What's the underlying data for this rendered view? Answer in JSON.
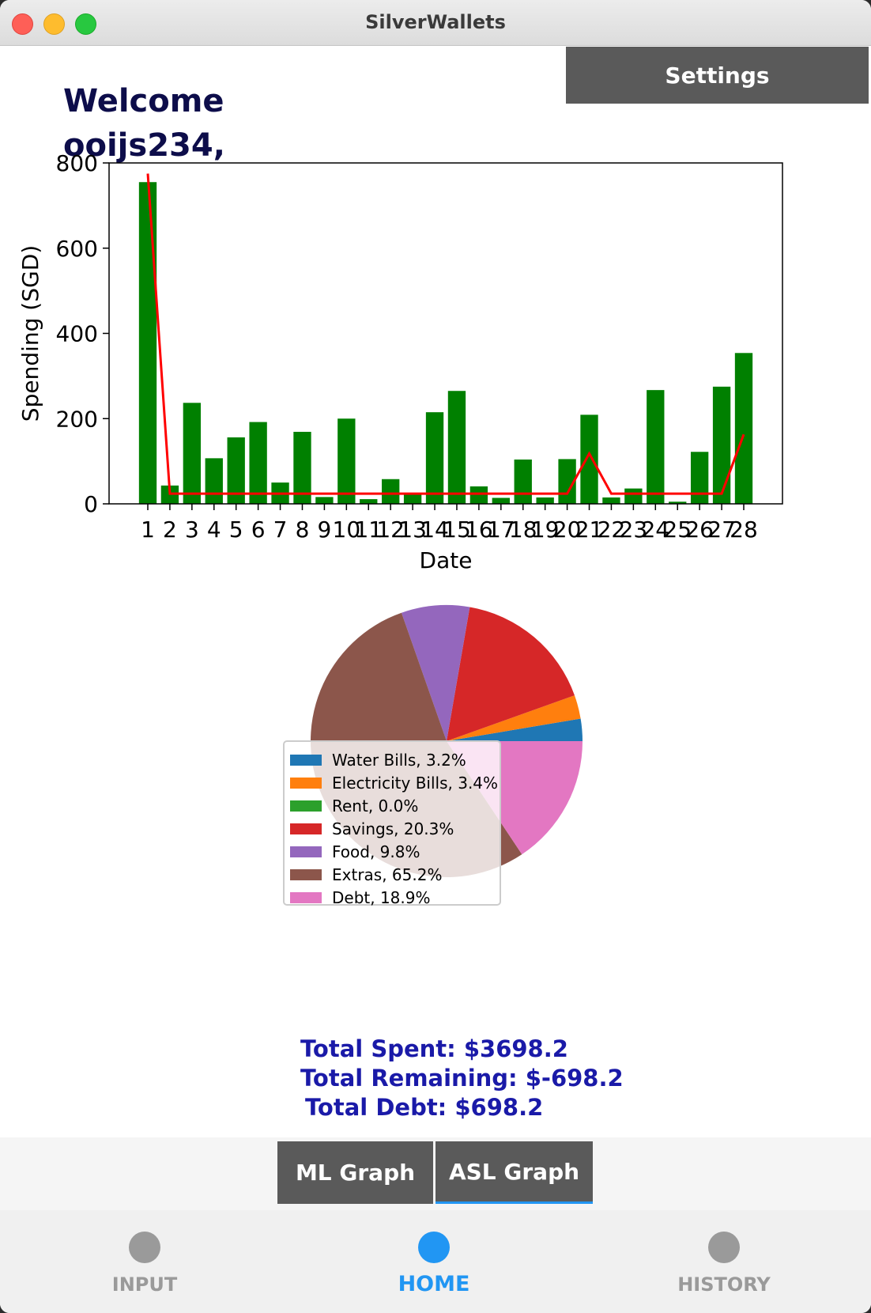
{
  "window": {
    "title": "SilverWallets"
  },
  "header": {
    "settings_label": "Settings",
    "welcome_line1": "Welcome",
    "welcome_line2": "ooijs234,"
  },
  "chart_data": [
    {
      "type": "bar",
      "xlabel": "Date",
      "ylabel": "Spending (SGD)",
      "ylim": [
        0,
        800
      ],
      "yticks": [
        0,
        200,
        400,
        600,
        800
      ],
      "grid": false,
      "categories": [
        "1",
        "2",
        "3",
        "4",
        "5",
        "6",
        "7",
        "8",
        "9",
        "10",
        "11",
        "12",
        "13",
        "14",
        "15",
        "16",
        "17",
        "18",
        "19",
        "20",
        "21",
        "22",
        "23",
        "24",
        "25",
        "26",
        "27",
        "28"
      ],
      "series": [
        {
          "kind": "bar",
          "color": "#008000",
          "values": [
            755,
            43,
            237,
            107,
            156,
            192,
            50,
            169,
            16,
            200,
            11,
            58,
            23,
            215,
            265,
            41,
            14,
            104,
            15,
            105,
            209,
            15,
            36,
            267,
            5,
            122,
            275,
            354
          ]
        },
        {
          "kind": "line",
          "color": "#ff0000",
          "values": [
            775,
            24,
            24,
            24,
            24,
            24,
            24,
            24,
            24,
            24,
            24,
            24,
            24,
            24,
            24,
            24,
            24,
            24,
            24,
            24,
            118,
            24,
            24,
            24,
            24,
            24,
            24,
            163
          ]
        }
      ]
    },
    {
      "type": "pie",
      "slices": [
        {
          "label": "Water Bills, 3.2%",
          "value": 3.2,
          "color": "#1f77b4"
        },
        {
          "label": "Electricity Bills, 3.4%",
          "value": 3.4,
          "color": "#ff7f0e"
        },
        {
          "label": "Rent, 0.0%",
          "value": 0.0,
          "color": "#2ca02c"
        },
        {
          "label": "Savings, 20.3%",
          "value": 20.3,
          "color": "#d62728"
        },
        {
          "label": "Food, 9.8%",
          "value": 9.8,
          "color": "#9467bd"
        },
        {
          "label": "Extras, 65.2%",
          "value": 65.2,
          "color": "#8c564b"
        },
        {
          "label": "Debt, 18.9%",
          "value": 18.9,
          "color": "#e377c2"
        }
      ],
      "legend_position": "lower-left overlapping"
    }
  ],
  "totals": {
    "spent": "Total Spent: $3698.2",
    "remaining": "Total Remaining: $-698.2",
    "debt": "Total Debt: $698.2"
  },
  "graph_tabs": {
    "ml_label": "ML Graph",
    "asl_label": "ASL Graph"
  },
  "nav": {
    "input_label": "INPUT",
    "home_label": "HOME",
    "history_label": "HISTORY"
  }
}
